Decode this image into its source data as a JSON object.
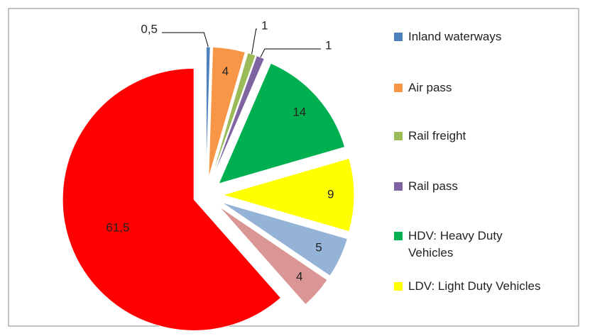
{
  "chart_data": {
    "type": "pie",
    "categories": [
      "Inland waterways",
      "Air pass",
      "Rail freight",
      "Rail pass",
      "HDV: Heavy Duty Vehicles",
      "LDV: Light Duty Vehicles",
      null,
      null,
      null
    ],
    "values": [
      0.5,
      4,
      1,
      1,
      14,
      9,
      5,
      4,
      61.5
    ],
    "value_labels": [
      "0,5",
      "4",
      "1",
      "1",
      "14",
      "9",
      "5",
      "4",
      "61,5"
    ],
    "colors": [
      "#4f81bd",
      "#f79646",
      "#9bbb59",
      "#8064a2",
      "#00b050",
      "#ffff00",
      "#95b3d7",
      "#d99694",
      "#ff0000"
    ],
    "legend": "right"
  }
}
